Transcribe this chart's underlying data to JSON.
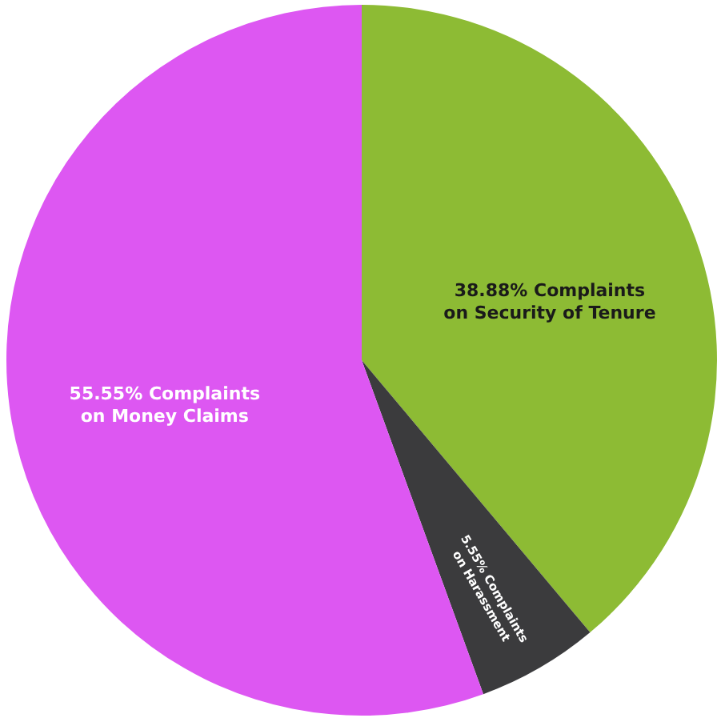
{
  "chart_data": {
    "type": "pie",
    "categories": [
      "Complaints on Security of Tenure",
      "Complaints on Harassment",
      "Complaints on Money Claims"
    ],
    "values": [
      38.88,
      5.55,
      55.55
    ],
    "value_labels": [
      "38.88%",
      "5.55%",
      "55.55%"
    ],
    "colors": [
      "#8dbb34",
      "#3b3b3d",
      "#dd57f2"
    ]
  }
}
